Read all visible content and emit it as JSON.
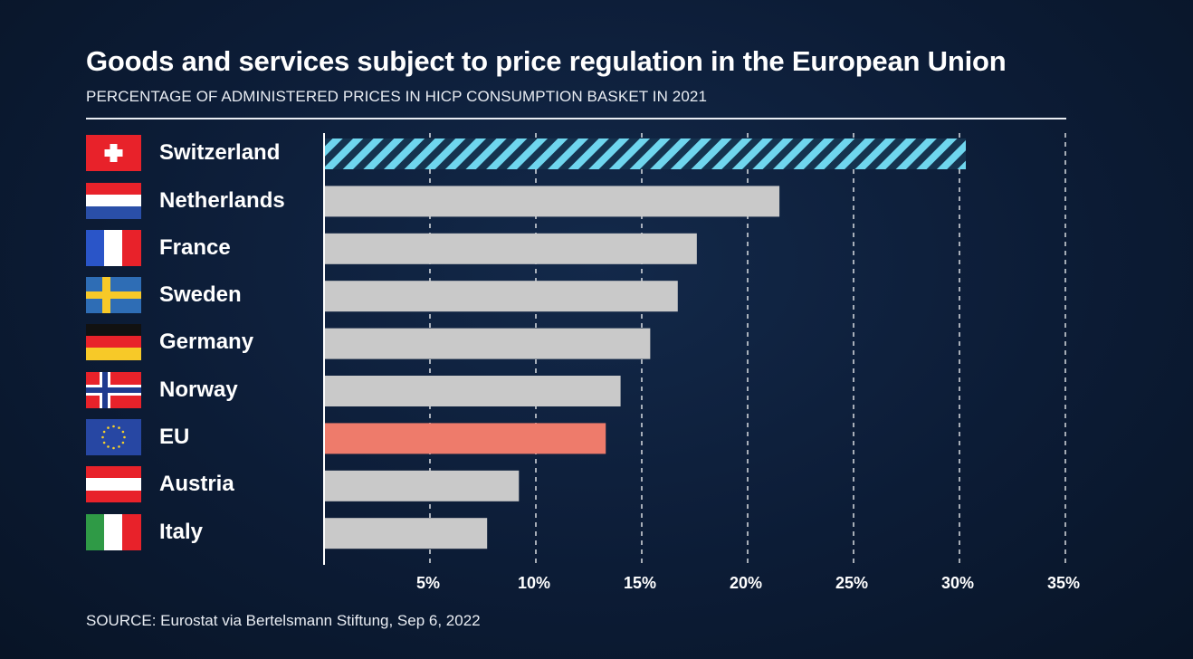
{
  "header": {
    "title": "Goods and services subject to price regulation in the European Union",
    "subtitle": "PERCENTAGE OF ADMINISTERED PRICES IN HICP CONSUMPTION BASKET IN 2021"
  },
  "footer": {
    "source": "SOURCE: Eurostat via Bertelsmann Stiftung, Sep 6, 2022"
  },
  "colors": {
    "default_bar": "#c9c9c9",
    "eu_bar": "#ee7b6b",
    "highlight_bar": "#6fd6ee",
    "grid": "#ffffff"
  },
  "chart_data": {
    "type": "bar",
    "orientation": "horizontal",
    "title": "Goods and services subject to price regulation in the European Union",
    "subtitle": "PERCENTAGE OF ADMINISTERED PRICES IN HICP CONSUMPTION BASKET IN 2021",
    "categories": [
      "Switzerland",
      "Netherlands",
      "France",
      "Sweden",
      "Germany",
      "Norway",
      "EU",
      "Austria",
      "Italy"
    ],
    "values": [
      30.3,
      21.5,
      17.6,
      16.7,
      15.4,
      14.0,
      13.3,
      9.2,
      7.7
    ],
    "styles": [
      "hatched",
      "default",
      "default",
      "default",
      "default",
      "default",
      "eu",
      "default",
      "default"
    ],
    "xlim": [
      0,
      35
    ],
    "xticks": [
      5,
      10,
      15,
      20,
      25,
      30,
      35
    ],
    "xtick_labels": [
      "5%",
      "10%",
      "15%",
      "20%",
      "25%",
      "30%",
      "35%"
    ],
    "grid": "vertical dashed",
    "xlabel": "",
    "ylabel": ""
  },
  "flags": [
    "switzerland-flag",
    "netherlands-flag",
    "france-flag",
    "sweden-flag",
    "germany-flag",
    "norway-flag",
    "eu-flag",
    "austria-flag",
    "italy-flag"
  ]
}
